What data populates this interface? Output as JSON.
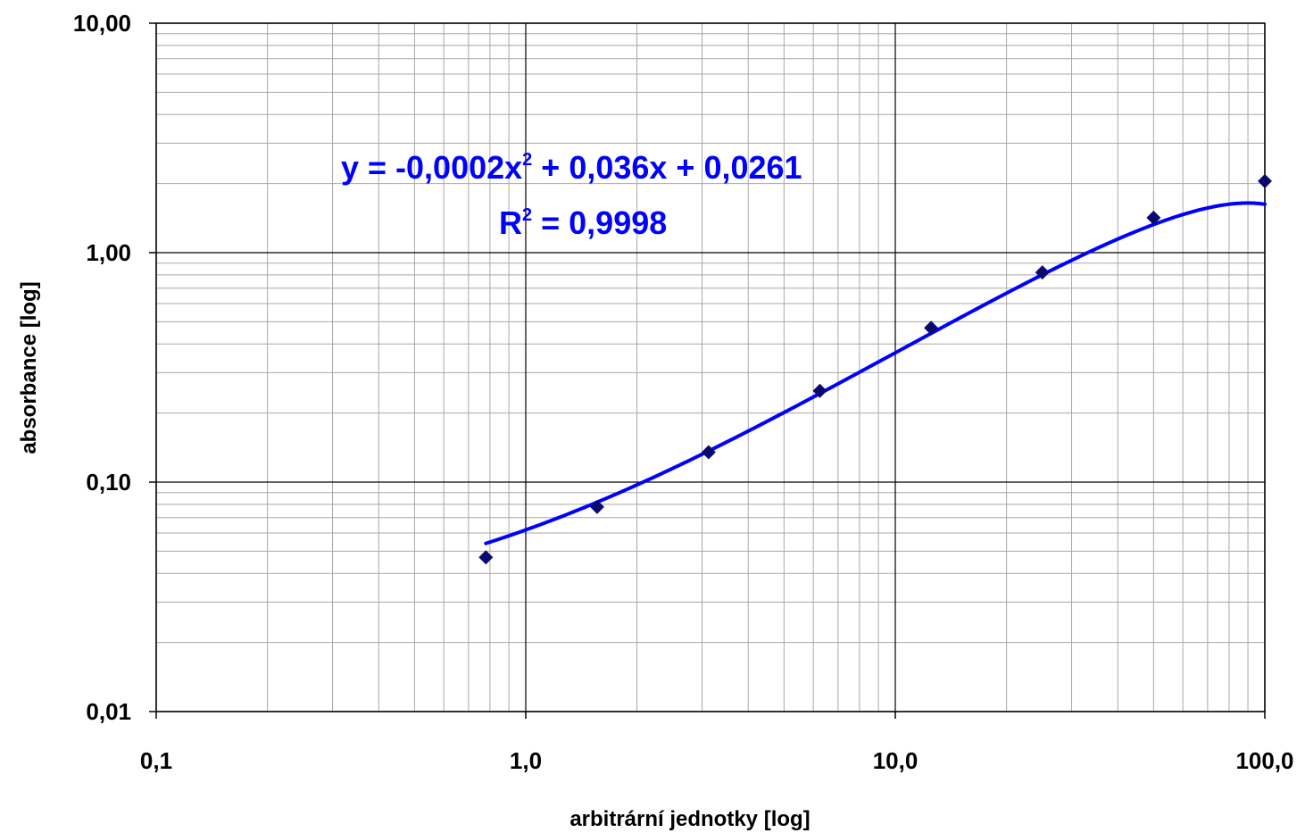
{
  "chart_data": {
    "type": "scatter",
    "x_scale": "log",
    "y_scale": "log",
    "xlabel": "arbitrární jednotky [log]",
    "ylabel": "absorbance [log]",
    "xlim": [
      0.1,
      100
    ],
    "ylim": [
      0.01,
      10
    ],
    "x_ticks": [
      {
        "value": 0.1,
        "label": "0,1"
      },
      {
        "value": 1,
        "label": "1,0"
      },
      {
        "value": 10,
        "label": "10,0"
      },
      {
        "value": 100,
        "label": "100,0"
      }
    ],
    "y_ticks": [
      {
        "value": 0.01,
        "label": "0,01"
      },
      {
        "value": 0.1,
        "label": "0,10"
      },
      {
        "value": 1,
        "label": "1,00"
      },
      {
        "value": 10,
        "label": "10,00"
      }
    ],
    "grid": true,
    "series": [
      {
        "marker": "diamond",
        "color": "#0a0a6e",
        "points": [
          {
            "x": 0.78,
            "y": 0.047
          },
          {
            "x": 1.56,
            "y": 0.078
          },
          {
            "x": 3.125,
            "y": 0.135
          },
          {
            "x": 6.25,
            "y": 0.25
          },
          {
            "x": 12.5,
            "y": 0.47
          },
          {
            "x": 25,
            "y": 0.82
          },
          {
            "x": 50,
            "y": 1.42
          },
          {
            "x": 100,
            "y": 2.05
          }
        ]
      }
    ],
    "trendline": {
      "type": "polynomial",
      "order": 2,
      "coefficients": [
        -0.0002,
        0.036,
        0.0261
      ],
      "x_range": [
        0.78,
        100
      ],
      "color": "#0000ff",
      "equation": {
        "line1_prefix": "y = -0,0002x",
        "line1_sup": "2",
        "line1_suffix": " + 0,036x + 0,0261",
        "line2_prefix": "R",
        "line2_sup": "2",
        "line2_suffix": " = 0,9998"
      }
    }
  }
}
